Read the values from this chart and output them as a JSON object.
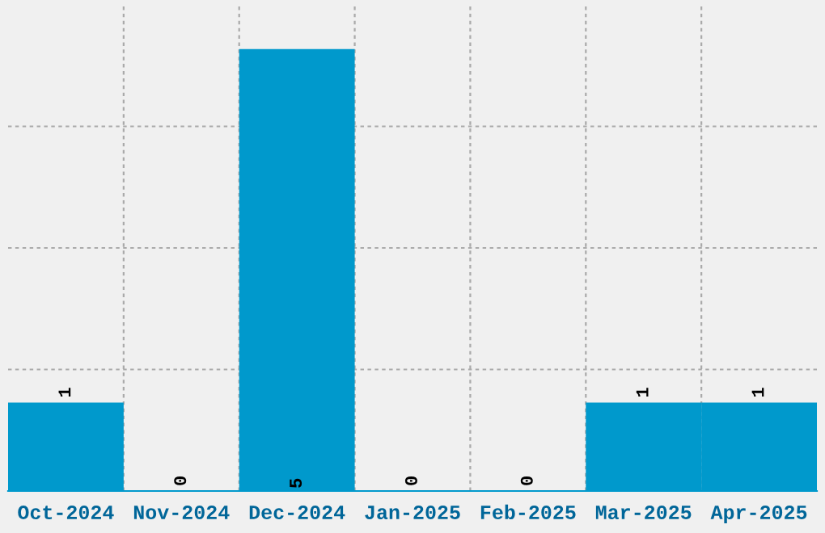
{
  "chart_data": {
    "type": "bar",
    "categories": [
      "Oct-2024",
      "Nov-2024",
      "Dec-2024",
      "Jan-2025",
      "Feb-2025",
      "Mar-2025",
      "Apr-2025"
    ],
    "values": [
      1,
      0,
      5,
      0,
      0,
      1,
      1
    ],
    "color": "#0099cc",
    "ylim": [
      0,
      5.5
    ],
    "yticks": [
      {
        "value": 1.375,
        "label": null
      },
      {
        "value": 2.75,
        "label": null
      },
      {
        "value": 4.125,
        "label": null
      }
    ],
    "tick_labels": "x",
    "grid": true,
    "data_labels": true
  }
}
